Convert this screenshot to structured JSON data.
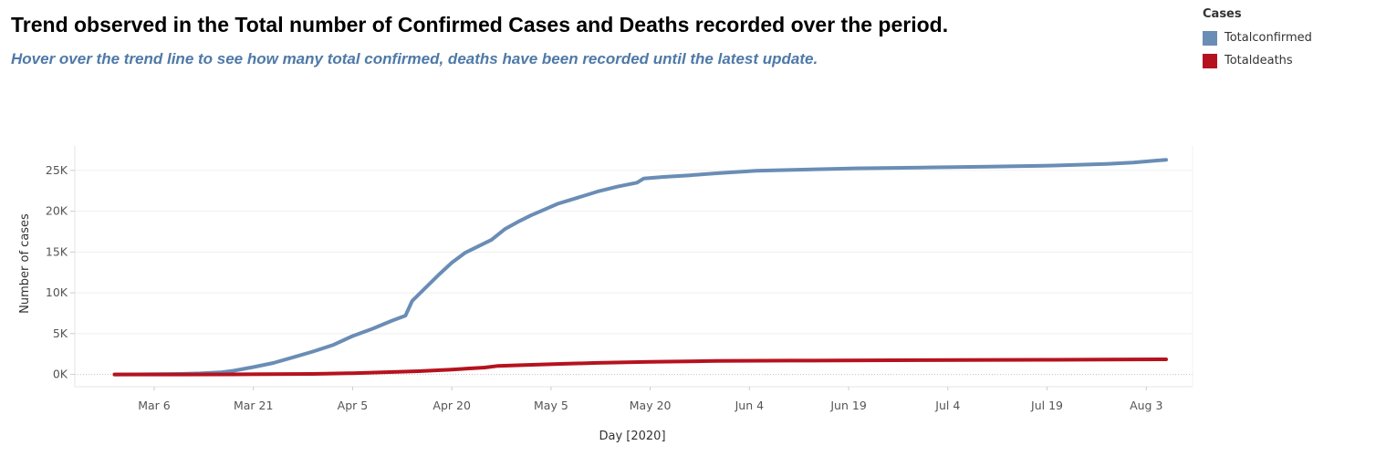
{
  "header": {
    "title": "Trend observed in the Total number of Confirmed Cases and Deaths recorded over the period.",
    "subtitle": "Hover over the trend line to see how many total confirmed, deaths have been recorded until the latest update."
  },
  "legend": {
    "title": "Cases",
    "items": [
      {
        "label": "Totalconfirmed",
        "color": "#6a8db5"
      },
      {
        "label": "Totaldeaths",
        "color": "#b5121f"
      }
    ]
  },
  "chart_data": {
    "type": "line",
    "xlabel": "Day [2020]",
    "ylabel": "Number of cases",
    "xlim": [
      "2020-02-23",
      "2020-08-10"
    ],
    "ylim": [
      -1500,
      28000
    ],
    "x_ticks": [
      {
        "date": "2020-03-06",
        "label": "Mar 6"
      },
      {
        "date": "2020-03-21",
        "label": "Mar 21"
      },
      {
        "date": "2020-04-05",
        "label": "Apr 5"
      },
      {
        "date": "2020-04-20",
        "label": "Apr 20"
      },
      {
        "date": "2020-05-05",
        "label": "May 5"
      },
      {
        "date": "2020-05-20",
        "label": "May 20"
      },
      {
        "date": "2020-06-04",
        "label": "Jun 4"
      },
      {
        "date": "2020-06-19",
        "label": "Jun 19"
      },
      {
        "date": "2020-07-04",
        "label": "Jul 4"
      },
      {
        "date": "2020-07-19",
        "label": "Jul 19"
      },
      {
        "date": "2020-08-03",
        "label": "Aug 3"
      }
    ],
    "y_ticks": [
      {
        "value": 0,
        "label": "0K"
      },
      {
        "value": 5000,
        "label": "5K"
      },
      {
        "value": 10000,
        "label": "10K"
      },
      {
        "value": 15000,
        "label": "15K"
      },
      {
        "value": 20000,
        "label": "20K"
      },
      {
        "value": 25000,
        "label": "25K"
      }
    ],
    "grid": true,
    "legend_position": "top-right",
    "series": [
      {
        "name": "Totalconfirmed",
        "color": "#6a8db5",
        "points": [
          [
            "2020-02-29",
            0
          ],
          [
            "2020-03-05",
            20
          ],
          [
            "2020-03-10",
            60
          ],
          [
            "2020-03-13",
            130
          ],
          [
            "2020-03-16",
            250
          ],
          [
            "2020-03-18",
            450
          ],
          [
            "2020-03-21",
            900
          ],
          [
            "2020-03-24",
            1400
          ],
          [
            "2020-03-27",
            2100
          ],
          [
            "2020-03-30",
            2800
          ],
          [
            "2020-04-02",
            3600
          ],
          [
            "2020-04-05",
            4700
          ],
          [
            "2020-04-08",
            5600
          ],
          [
            "2020-04-11",
            6600
          ],
          [
            "2020-04-13",
            7200
          ],
          [
            "2020-04-14",
            9000
          ],
          [
            "2020-04-16",
            10600
          ],
          [
            "2020-04-18",
            12200
          ],
          [
            "2020-04-20",
            13700
          ],
          [
            "2020-04-22",
            14900
          ],
          [
            "2020-04-24",
            15700
          ],
          [
            "2020-04-26",
            16500
          ],
          [
            "2020-04-28",
            17800
          ],
          [
            "2020-04-30",
            18700
          ],
          [
            "2020-05-02",
            19500
          ],
          [
            "2020-05-04",
            20200
          ],
          [
            "2020-05-06",
            20900
          ],
          [
            "2020-05-08",
            21400
          ],
          [
            "2020-05-10",
            21900
          ],
          [
            "2020-05-12",
            22400
          ],
          [
            "2020-05-15",
            23000
          ],
          [
            "2020-05-18",
            23500
          ],
          [
            "2020-05-19",
            24000
          ],
          [
            "2020-05-22",
            24200
          ],
          [
            "2020-05-26",
            24400
          ],
          [
            "2020-05-30",
            24650
          ],
          [
            "2020-06-05",
            24950
          ],
          [
            "2020-06-12",
            25100
          ],
          [
            "2020-06-20",
            25250
          ],
          [
            "2020-06-30",
            25350
          ],
          [
            "2020-07-10",
            25450
          ],
          [
            "2020-07-20",
            25600
          ],
          [
            "2020-07-28",
            25800
          ],
          [
            "2020-08-01",
            25950
          ],
          [
            "2020-08-06",
            26300
          ]
        ]
      },
      {
        "name": "Totaldeaths",
        "color": "#b5121f",
        "points": [
          [
            "2020-02-29",
            0
          ],
          [
            "2020-03-10",
            0
          ],
          [
            "2020-03-20",
            15
          ],
          [
            "2020-03-30",
            60
          ],
          [
            "2020-04-05",
            150
          ],
          [
            "2020-04-10",
            280
          ],
          [
            "2020-04-15",
            400
          ],
          [
            "2020-04-20",
            600
          ],
          [
            "2020-04-25",
            850
          ],
          [
            "2020-04-27",
            1050
          ],
          [
            "2020-05-01",
            1150
          ],
          [
            "2020-05-07",
            1300
          ],
          [
            "2020-05-12",
            1420
          ],
          [
            "2020-05-20",
            1550
          ],
          [
            "2020-05-30",
            1650
          ],
          [
            "2020-06-10",
            1700
          ],
          [
            "2020-06-30",
            1750
          ],
          [
            "2020-07-20",
            1800
          ],
          [
            "2020-08-06",
            1850
          ]
        ]
      }
    ]
  }
}
